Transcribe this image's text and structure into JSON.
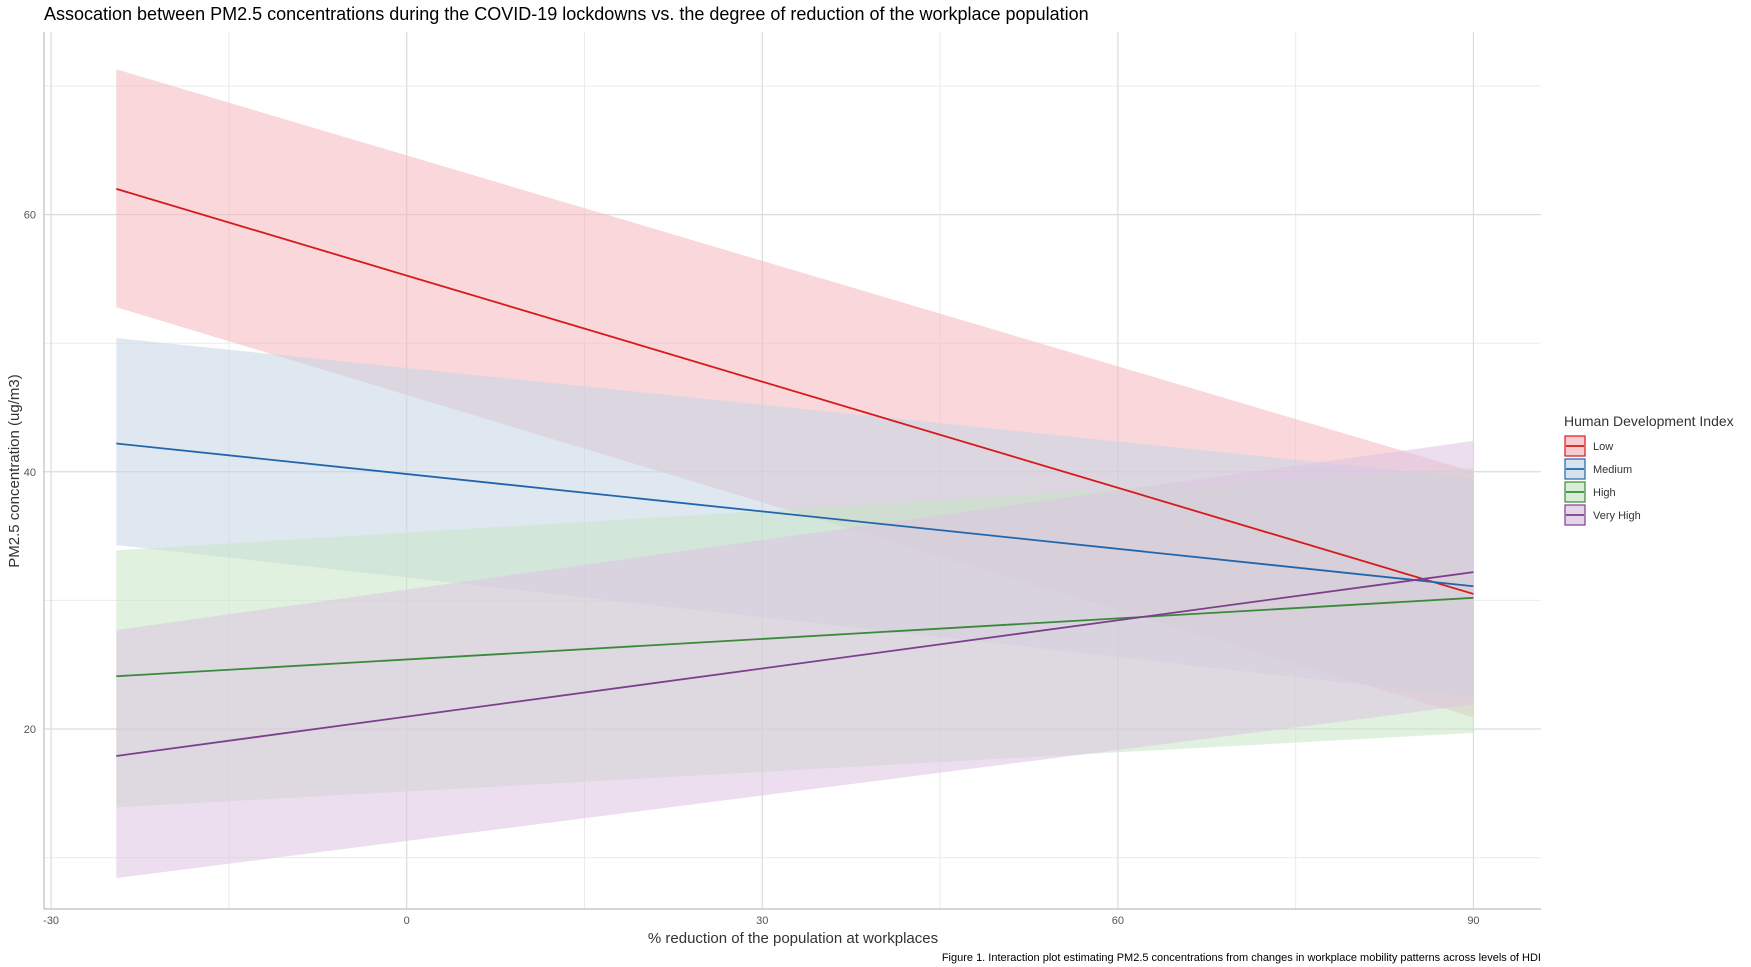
{
  "chart_data": {
    "type": "line",
    "title": "Assocation between PM2.5 concentrations during the COVID-19 lockdowns vs. the degree of reduction of the workplace population",
    "xlabel": "% reduction of the population at workplaces",
    "ylabel": "PM2.5 concentration (ug/m3)",
    "caption": "Figure 1. Interaction plot estimating PM2.5 concentrations from changes in workplace mobility patterns across levels of HDI",
    "xlim": [
      -30.6,
      95.7
    ],
    "ylim": [
      6.0,
      74.2
    ],
    "x_ticks": [
      -30,
      0,
      30,
      60,
      90
    ],
    "y_ticks": [
      20,
      40,
      60
    ],
    "grid": true,
    "legend": {
      "title": "Human Development Index",
      "placement": "right"
    },
    "x": [
      -24.5,
      90
    ],
    "series": [
      {
        "name": "Low",
        "values": [
          62.0,
          30.5
        ],
        "ci_low": [
          52.8,
          20.9
        ],
        "ci_high": [
          71.3,
          40.0
        ],
        "color": "#D7191C",
        "fill": "#F4B6BC"
      },
      {
        "name": "Medium",
        "values": [
          42.2,
          31.1
        ],
        "ci_low": [
          34.3,
          22.5
        ],
        "ci_high": [
          50.4,
          39.5
        ],
        "color": "#2166AC",
        "fill": "#C5D5E6"
      },
      {
        "name": "High",
        "values": [
          24.1,
          30.2
        ],
        "ci_low": [
          13.9,
          19.7
        ],
        "ci_high": [
          33.9,
          40.3
        ],
        "color": "#3A8A3A",
        "fill": "#C6E6C4"
      },
      {
        "name": "Very High",
        "values": [
          17.9,
          32.2
        ],
        "ci_low": [
          8.4,
          21.9
        ],
        "ci_high": [
          27.7,
          42.4
        ],
        "color": "#7B3F8C",
        "fill": "#DCC2E2"
      }
    ]
  }
}
